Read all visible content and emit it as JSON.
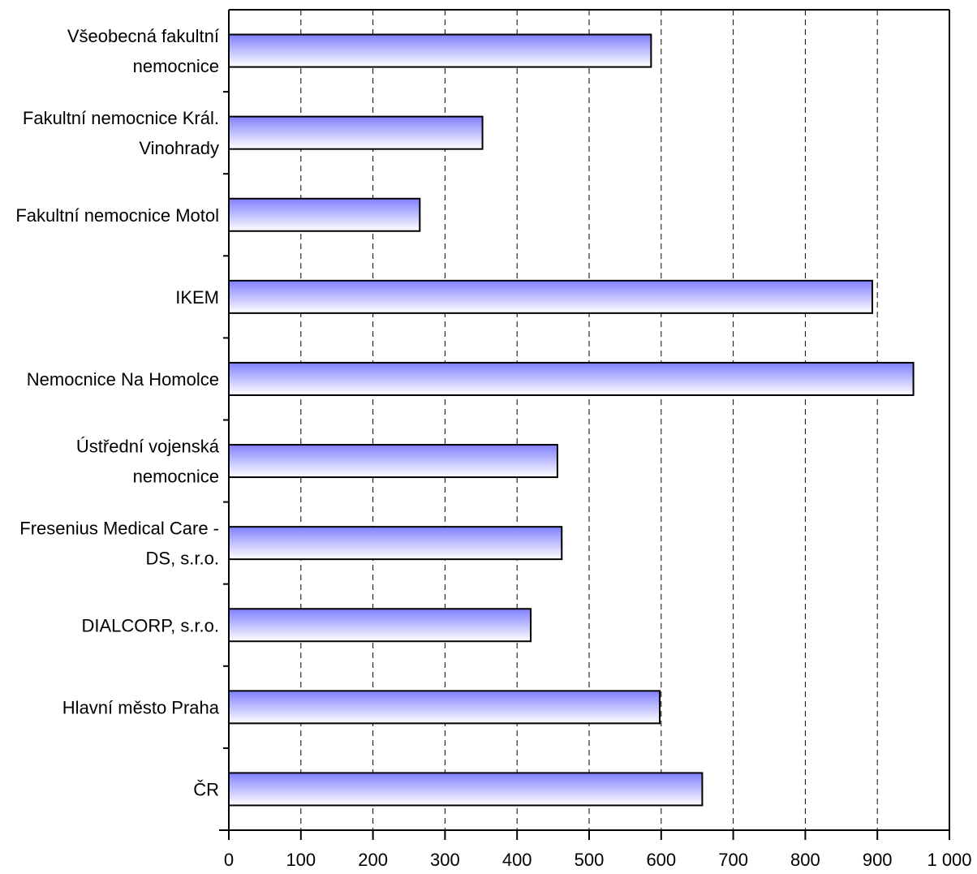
{
  "chart_data": {
    "type": "bar",
    "orientation": "horizontal",
    "categories": [
      [
        "Všeobecná fakultní",
        "nemocnice"
      ],
      [
        "Fakultní nemocnice Král.",
        "Vinohrady"
      ],
      [
        "Fakultní nemocnice Motol"
      ],
      [
        "IKEM"
      ],
      [
        "Nemocnice Na Homolce"
      ],
      [
        "Ústřední vojenská",
        "nemocnice"
      ],
      [
        "Fresenius Medical Care -",
        "DS, s.r.o."
      ],
      [
        "DIALCORP, s.r.o."
      ],
      [
        "Hlavní město Praha"
      ],
      [
        "ČR"
      ]
    ],
    "values": [
      586,
      352,
      265,
      893,
      950,
      456,
      462,
      419,
      598,
      657
    ],
    "xlim": [
      0,
      1000
    ],
    "xticks": [
      0,
      100,
      200,
      300,
      400,
      500,
      600,
      700,
      800,
      900,
      1000
    ],
    "xtick_labels": [
      "0",
      "100",
      "200",
      "300",
      "400",
      "500",
      "600",
      "700",
      "800",
      "900",
      "1 000"
    ],
    "grid": "vertical-dashed",
    "bar_colors": {
      "start": "#8080ff",
      "end": "#ffffff",
      "edge": "#000000"
    }
  }
}
